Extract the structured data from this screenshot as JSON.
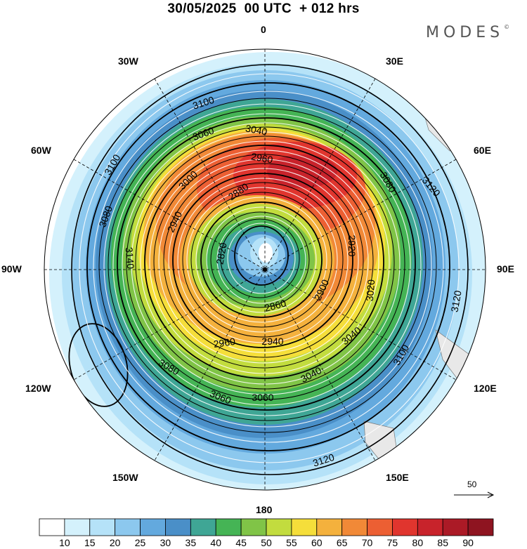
{
  "header": {
    "title": "30/05/2025  00 UTC  + 012 hrs",
    "brand": "MODES"
  },
  "map": {
    "projection": "south-polar-stereographic",
    "longitude_labels": {
      "top": "0",
      "top_right": "30E",
      "right_upper": "60E",
      "right": "90E",
      "right_lower": "120E",
      "bottom_right": "150E",
      "bottom": "180",
      "bottom_left": "150W",
      "left_lower": "120W",
      "left": "90W",
      "left_upper": "60W",
      "top_left": "30W"
    },
    "contour_labels": [
      "3100",
      "3060",
      "3040",
      "2960",
      "3000",
      "2880",
      "2940",
      "2820",
      "2860",
      "2900",
      "2920",
      "3020",
      "3080",
      "3120",
      "3140"
    ],
    "wind_reference": "50",
    "shading": "wind speed",
    "contours": "geopotential height"
  },
  "legend": {
    "tick_labels": [
      "10",
      "15",
      "20",
      "25",
      "30",
      "35",
      "40",
      "45",
      "50",
      "55",
      "60",
      "65",
      "70",
      "75",
      "80",
      "85",
      "90"
    ],
    "colors": [
      "#ffffff",
      "#d4f1fc",
      "#b5e2f8",
      "#8cc8ee",
      "#63a9de",
      "#4a8fc8",
      "#3fa695",
      "#45b455",
      "#80c447",
      "#c2dc3e",
      "#f5de3a",
      "#f4b13d",
      "#f18937",
      "#ec5f33",
      "#e0352e",
      "#c8232b",
      "#ab1a26",
      "#8e1420"
    ]
  }
}
